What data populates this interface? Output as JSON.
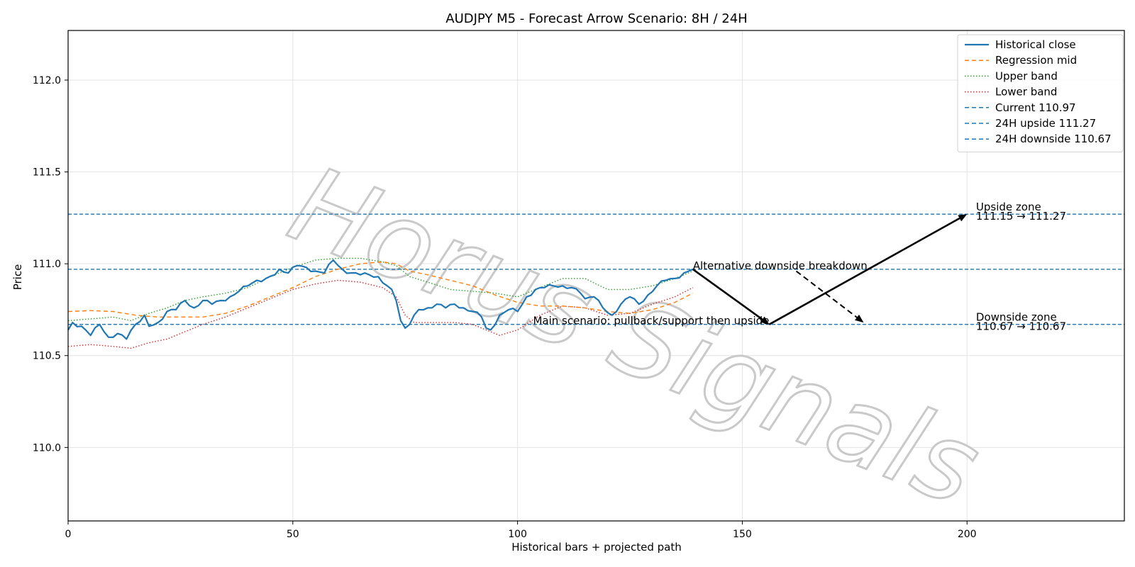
{
  "chart_data": {
    "type": "line",
    "title": "AUDJPY M5 - Forecast Arrow Scenario: 8H / 24H",
    "xlabel": "Historical bars + projected path",
    "ylabel": "Price",
    "xlim": [
      0,
      235
    ],
    "ylim": [
      109.6,
      112.27
    ],
    "xticks": [
      0,
      50,
      100,
      150,
      200
    ],
    "xtick_labels": [
      "0",
      "50",
      "100",
      "150",
      "200"
    ],
    "yticks": [
      110.0,
      110.5,
      111.0,
      111.5,
      112.0
    ],
    "ytick_labels": [
      "110.0",
      "110.5",
      "111.0",
      "111.5",
      "112.0"
    ],
    "grid": true,
    "legend_position": "top-right",
    "colors": {
      "close": "#1f77b4",
      "mid": "#ff7f0e",
      "upper": "#2ca02c",
      "lower": "#d62728",
      "hline": "#1f77b4",
      "arrow": "#000000"
    },
    "series": [
      {
        "name": "Historical close",
        "style": "solid",
        "anchors": [
          [
            0,
            110.64
          ],
          [
            1,
            110.68
          ],
          [
            3,
            110.66
          ],
          [
            5,
            110.61
          ],
          [
            7,
            110.67
          ],
          [
            9,
            110.6
          ],
          [
            11,
            110.62
          ],
          [
            13,
            110.59
          ],
          [
            15,
            110.67
          ],
          [
            17,
            110.72
          ],
          [
            18,
            110.66
          ],
          [
            20,
            110.68
          ],
          [
            22,
            110.74
          ],
          [
            24,
            110.75
          ],
          [
            26,
            110.8
          ],
          [
            28,
            110.76
          ],
          [
            30,
            110.8
          ],
          [
            32,
            110.78
          ],
          [
            34,
            110.8
          ],
          [
            36,
            110.82
          ],
          [
            38,
            110.85
          ],
          [
            40,
            110.88
          ],
          [
            42,
            110.91
          ],
          [
            44,
            110.92
          ],
          [
            46,
            110.94
          ],
          [
            47,
            110.97
          ],
          [
            49,
            110.95
          ],
          [
            51,
            110.99
          ],
          [
            53,
            110.98
          ],
          [
            55,
            110.96
          ],
          [
            57,
            110.95
          ],
          [
            59,
            111.02
          ],
          [
            61,
            110.97
          ],
          [
            63,
            110.95
          ],
          [
            65,
            110.94
          ],
          [
            67,
            110.94
          ],
          [
            69,
            110.93
          ],
          [
            71,
            110.88
          ],
          [
            72,
            110.86
          ],
          [
            73,
            110.8
          ],
          [
            74,
            110.69
          ],
          [
            75,
            110.65
          ],
          [
            76,
            110.67
          ],
          [
            78,
            110.75
          ],
          [
            80,
            110.76
          ],
          [
            82,
            110.78
          ],
          [
            84,
            110.76
          ],
          [
            86,
            110.78
          ],
          [
            88,
            110.76
          ],
          [
            90,
            110.74
          ],
          [
            92,
            110.71
          ],
          [
            93,
            110.65
          ],
          [
            94,
            110.64
          ],
          [
            96,
            110.72
          ],
          [
            98,
            110.75
          ],
          [
            100,
            110.74
          ],
          [
            102,
            110.82
          ],
          [
            104,
            110.86
          ],
          [
            106,
            110.87
          ],
          [
            108,
            110.88
          ],
          [
            110,
            110.88
          ],
          [
            112,
            110.87
          ],
          [
            114,
            110.84
          ],
          [
            115,
            110.81
          ],
          [
            117,
            110.82
          ],
          [
            119,
            110.76
          ],
          [
            121,
            110.72
          ],
          [
            123,
            110.78
          ],
          [
            125,
            110.82
          ],
          [
            127,
            110.78
          ],
          [
            129,
            110.83
          ],
          [
            131,
            110.88
          ],
          [
            133,
            110.91
          ],
          [
            135,
            110.92
          ],
          [
            137,
            110.95
          ],
          [
            139,
            110.97
          ]
        ]
      },
      {
        "name": "Regression mid",
        "style": "dashed",
        "anchors": [
          [
            0,
            110.74
          ],
          [
            5,
            110.745
          ],
          [
            10,
            110.74
          ],
          [
            15,
            110.72
          ],
          [
            20,
            110.71
          ],
          [
            25,
            110.71
          ],
          [
            30,
            110.71
          ],
          [
            35,
            110.73
          ],
          [
            40,
            110.77
          ],
          [
            45,
            110.82
          ],
          [
            50,
            110.87
          ],
          [
            55,
            110.93
          ],
          [
            60,
            110.97
          ],
          [
            65,
            111.0
          ],
          [
            70,
            111.01
          ],
          [
            73,
            111.0
          ],
          [
            76,
            110.96
          ],
          [
            80,
            110.94
          ],
          [
            85,
            110.91
          ],
          [
            90,
            110.88
          ],
          [
            95,
            110.83
          ],
          [
            100,
            110.79
          ],
          [
            105,
            110.77
          ],
          [
            110,
            110.77
          ],
          [
            115,
            110.76
          ],
          [
            120,
            110.74
          ],
          [
            125,
            110.73
          ],
          [
            130,
            110.75
          ],
          [
            135,
            110.79
          ],
          [
            139,
            110.84
          ]
        ]
      },
      {
        "name": "Upper band",
        "style": "dotted",
        "anchors": [
          [
            0,
            110.69
          ],
          [
            5,
            110.7
          ],
          [
            10,
            110.71
          ],
          [
            14,
            110.69
          ],
          [
            18,
            110.73
          ],
          [
            22,
            110.76
          ],
          [
            26,
            110.8
          ],
          [
            30,
            110.82
          ],
          [
            35,
            110.84
          ],
          [
            40,
            110.87
          ],
          [
            45,
            110.93
          ],
          [
            50,
            110.98
          ],
          [
            55,
            111.02
          ],
          [
            60,
            111.03
          ],
          [
            65,
            111.03
          ],
          [
            70,
            111.01
          ],
          [
            73,
            110.99
          ],
          [
            76,
            110.93
          ],
          [
            80,
            110.9
          ],
          [
            85,
            110.86
          ],
          [
            90,
            110.85
          ],
          [
            95,
            110.84
          ],
          [
            100,
            110.82
          ],
          [
            105,
            110.87
          ],
          [
            110,
            110.92
          ],
          [
            115,
            110.92
          ],
          [
            120,
            110.86
          ],
          [
            125,
            110.86
          ],
          [
            130,
            110.88
          ],
          [
            135,
            110.92
          ],
          [
            139,
            110.96
          ]
        ]
      },
      {
        "name": "Lower band",
        "style": "dotted",
        "anchors": [
          [
            0,
            110.55
          ],
          [
            5,
            110.56
          ],
          [
            10,
            110.55
          ],
          [
            14,
            110.54
          ],
          [
            18,
            110.57
          ],
          [
            22,
            110.59
          ],
          [
            26,
            110.63
          ],
          [
            30,
            110.67
          ],
          [
            35,
            110.71
          ],
          [
            40,
            110.76
          ],
          [
            45,
            110.81
          ],
          [
            50,
            110.86
          ],
          [
            55,
            110.89
          ],
          [
            60,
            110.91
          ],
          [
            65,
            110.9
          ],
          [
            70,
            110.87
          ],
          [
            73,
            110.82
          ],
          [
            75,
            110.72
          ],
          [
            77,
            110.68
          ],
          [
            82,
            110.68
          ],
          [
            86,
            110.68
          ],
          [
            90,
            110.67
          ],
          [
            94,
            110.63
          ],
          [
            96,
            110.61
          ],
          [
            100,
            110.64
          ],
          [
            105,
            110.72
          ],
          [
            110,
            110.77
          ],
          [
            115,
            110.76
          ],
          [
            120,
            110.72
          ],
          [
            125,
            110.73
          ],
          [
            130,
            110.78
          ],
          [
            135,
            110.82
          ],
          [
            139,
            110.87
          ]
        ]
      }
    ],
    "hlines": [
      {
        "name": "Current 110.97",
        "y": 110.97
      },
      {
        "name": "24H upside 111.27",
        "y": 111.27
      },
      {
        "name": "24H downside 110.67",
        "y": 110.67
      }
    ],
    "arrows": [
      {
        "from": [
          139,
          110.97
        ],
        "to": [
          156,
          110.67
        ],
        "style": "solid"
      },
      {
        "from": [
          156,
          110.67
        ],
        "to": [
          200,
          111.27
        ],
        "style": "solid"
      },
      {
        "from": [
          162,
          110.96
        ],
        "to": [
          177,
          110.68
        ],
        "style": "dashed"
      }
    ],
    "annotations": [
      {
        "text": "Main scenario: pullback/support then upside",
        "x": 156,
        "y": 110.67,
        "anchor": "end"
      },
      {
        "text": "Alternative downside breakdown",
        "x": 139,
        "y": 110.97,
        "anchor": "start"
      },
      {
        "text": "Upside zone",
        "x": 202,
        "y": 111.29,
        "anchor": "start"
      },
      {
        "text": "111.15 → 111.27",
        "x": 202,
        "y": 111.24,
        "anchor": "start"
      },
      {
        "text": "Downside zone",
        "x": 202,
        "y": 110.69,
        "anchor": "start"
      },
      {
        "text": "110.67 → 110.67",
        "x": 202,
        "y": 110.64,
        "anchor": "start"
      }
    ],
    "watermark": "Horus Signals",
    "legend": [
      {
        "label": "Historical close",
        "color": "#1f77b4",
        "style": "solid"
      },
      {
        "label": "Regression mid",
        "color": "#ff7f0e",
        "style": "dashed"
      },
      {
        "label": "Upper band",
        "color": "#2ca02c",
        "style": "dotted"
      },
      {
        "label": "Lower band",
        "color": "#d62728",
        "style": "dotted"
      },
      {
        "label": "Current 110.97",
        "color": "#1f77b4",
        "style": "dashed"
      },
      {
        "label": "24H upside 111.27",
        "color": "#1f77b4",
        "style": "dashed"
      },
      {
        "label": "24H downside 110.67",
        "color": "#1f77b4",
        "style": "dashed"
      }
    ]
  }
}
